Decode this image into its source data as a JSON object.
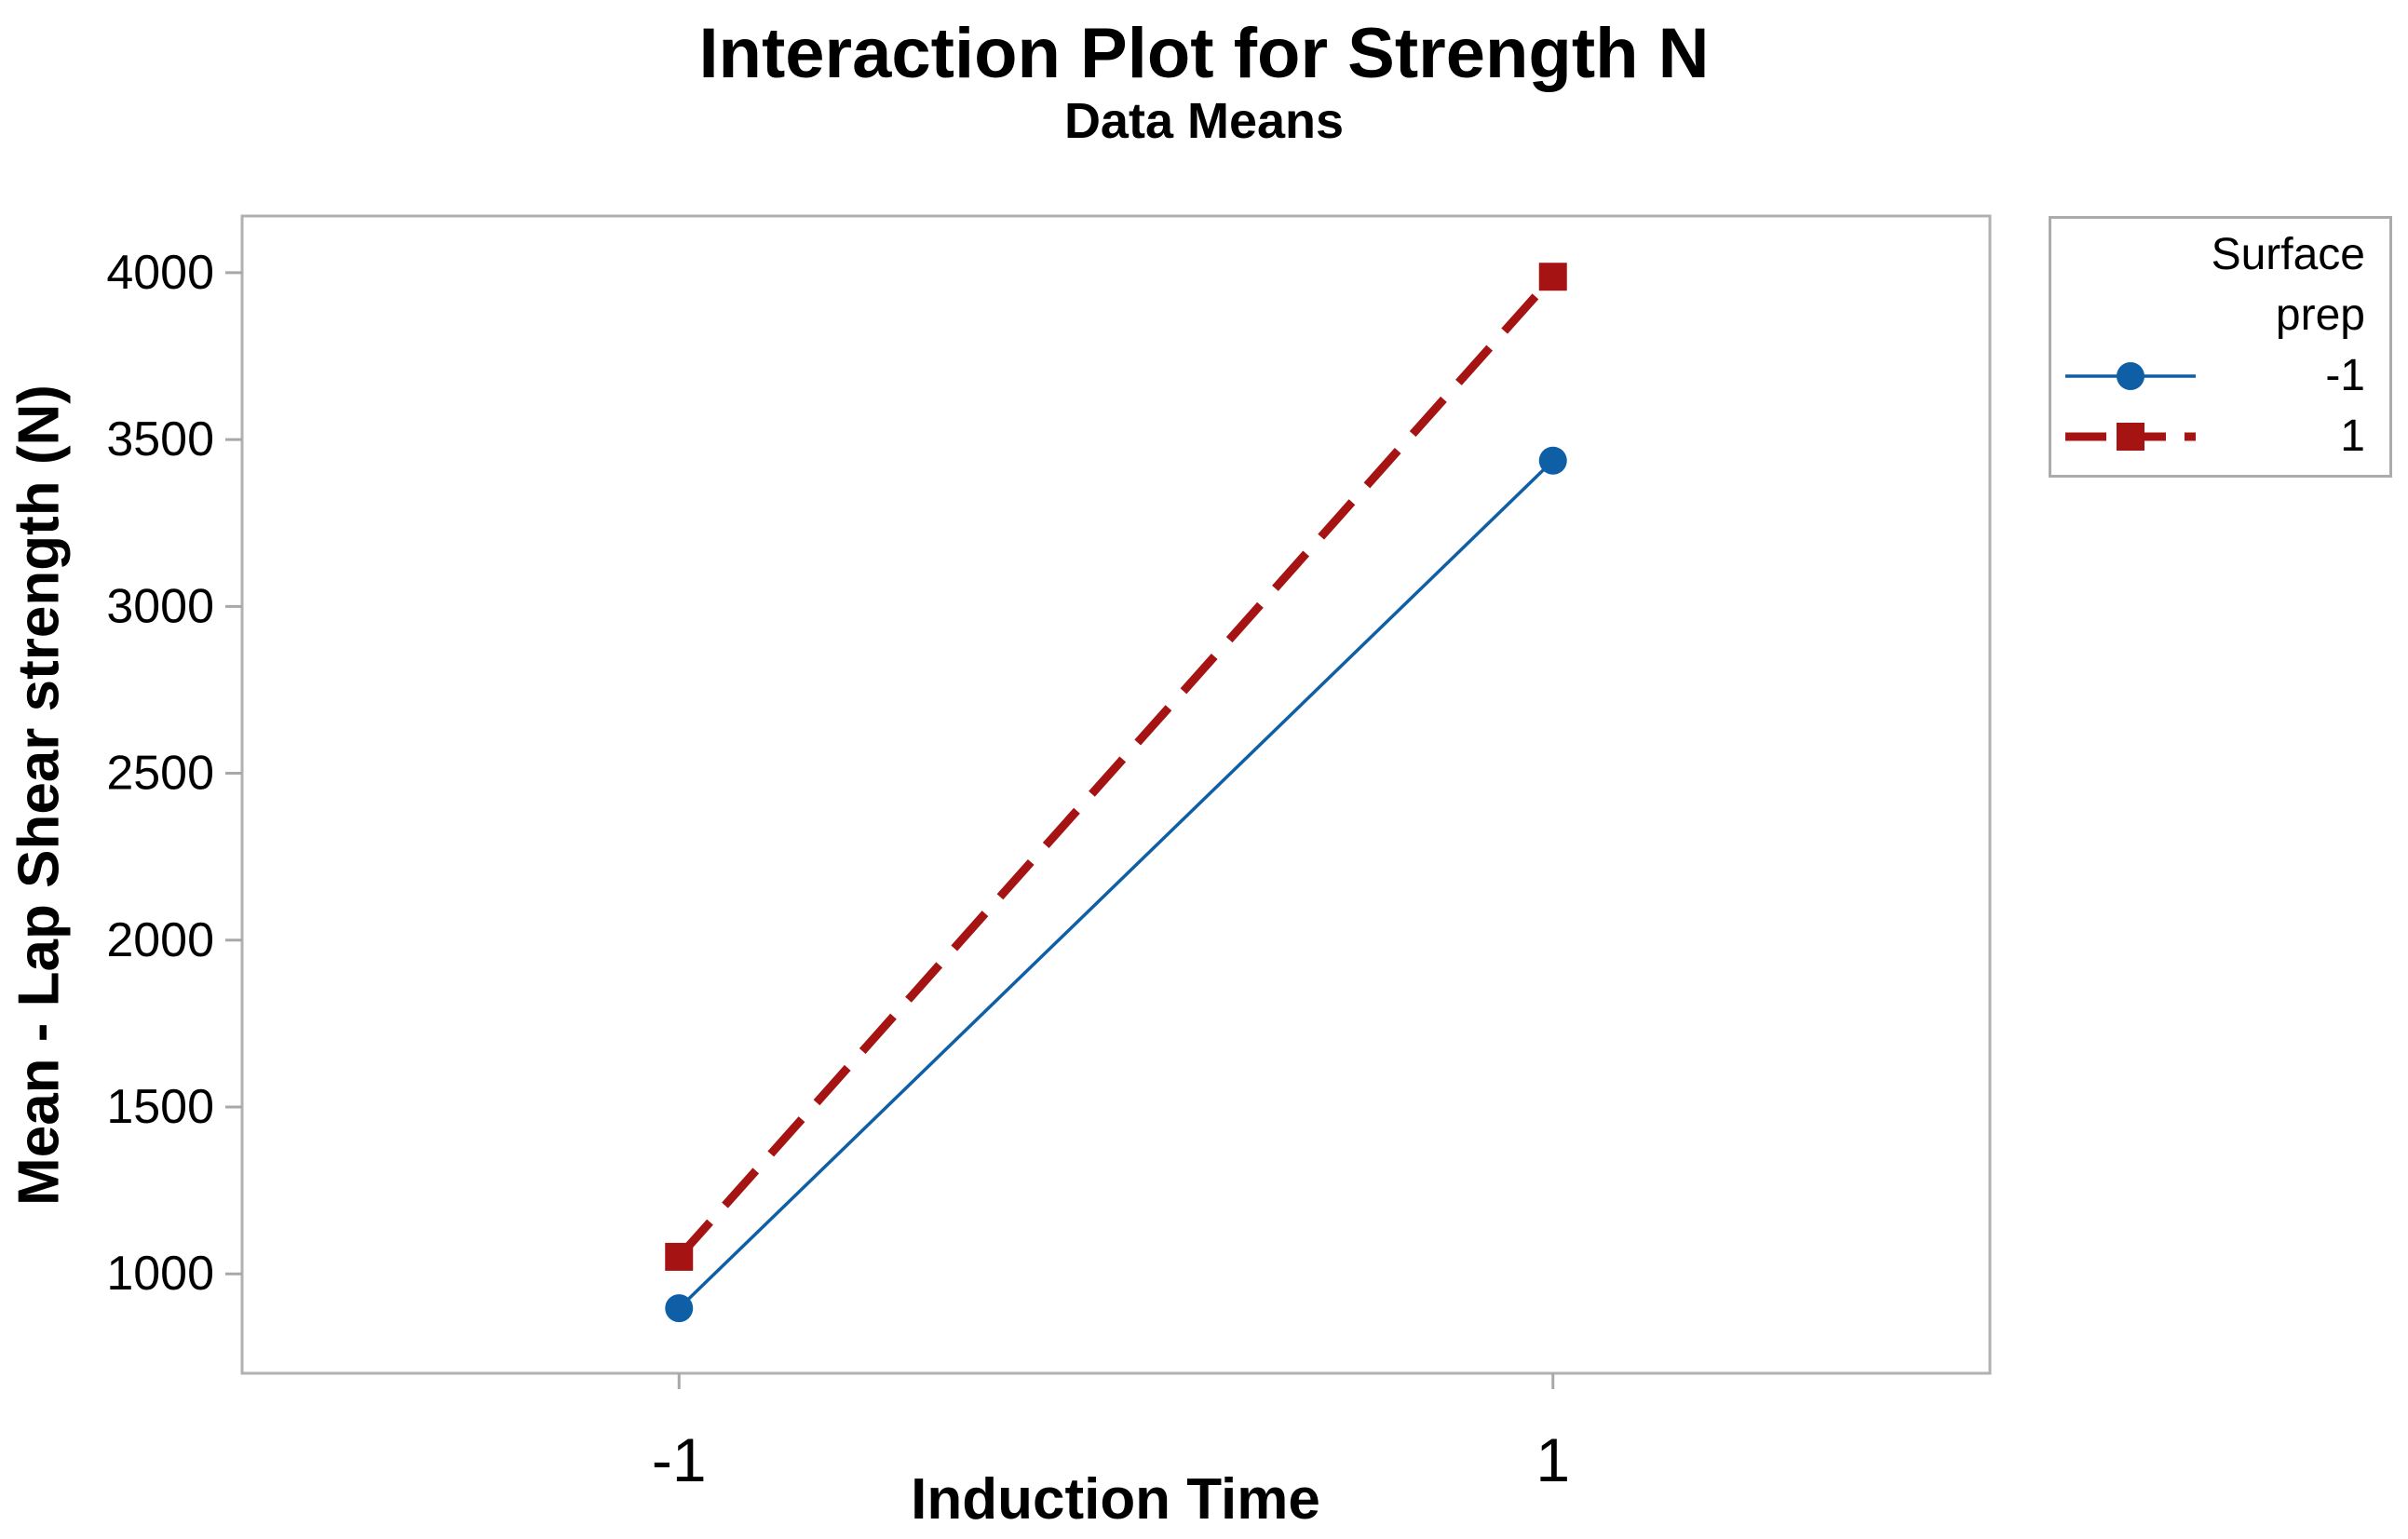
{
  "chart": {
    "title": "Interaction Plot for Strength N",
    "subtitle": "Data Means",
    "x_axis_label": "Induction Time",
    "y_axis_label": "Mean - Lap Shear strength (N)"
  },
  "legend": {
    "title_lines": [
      "Surface",
      "prep"
    ],
    "entries": [
      {
        "label": "-1",
        "color": "#0f5fa6",
        "marker": "circle",
        "line_style": "solid"
      },
      {
        "label": "1",
        "color": "#a51413",
        "marker": "square",
        "line_style": "dashed"
      }
    ]
  },
  "colors": {
    "frame": "#b1b1b1",
    "tick": "#a8a8a8",
    "blue_series": "#0f5fa6",
    "red_series": "#a51413",
    "text": "#000000",
    "background": "#ffffff"
  },
  "chart_data": {
    "type": "line",
    "title": "Interaction Plot for Strength N",
    "subtitle": "Data Means",
    "xlabel": "Induction Time",
    "ylabel": "Mean - Lap Shear strength (N)",
    "x": [
      -1,
      1
    ],
    "x_tick_labels": [
      "-1",
      "1"
    ],
    "series": [
      {
        "name": "-1",
        "values": [
          897,
          3437
        ],
        "color": "#0f5fa6",
        "marker": "circle",
        "line_style": "solid",
        "line_width": 3.5
      },
      {
        "name": "1",
        "values": [
          1051,
          3988
        ],
        "color": "#a51413",
        "marker": "square",
        "line_style": "dashed",
        "line_width": 9
      }
    ],
    "xlim": [
      -2,
      2
    ],
    "ylim": [
      702,
      4170
    ],
    "yticks": [
      1000,
      1500,
      2000,
      2500,
      3000,
      3500,
      4000
    ],
    "grid": false,
    "legend_title": "Surface prep",
    "legend_labels": [
      "-1",
      "1"
    ],
    "legend_position": "outside-top-right"
  }
}
